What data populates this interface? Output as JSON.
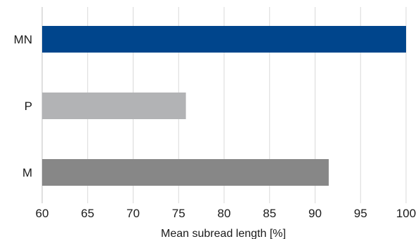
{
  "chart_data": {
    "type": "bar",
    "orientation": "horizontal",
    "categories": [
      "MN",
      "P",
      "M"
    ],
    "values": [
      100,
      75.8,
      91.5
    ],
    "colors": [
      "#00458c",
      "#b2b3b5",
      "#878787"
    ],
    "xlabel": "Mean subread length [%]",
    "ylabel": "",
    "xlim": [
      60,
      100
    ],
    "xticks": [
      "60",
      "65",
      "70",
      "75",
      "80",
      "85",
      "90",
      "95",
      "100"
    ],
    "grid": "vertical",
    "legend": "none"
  }
}
